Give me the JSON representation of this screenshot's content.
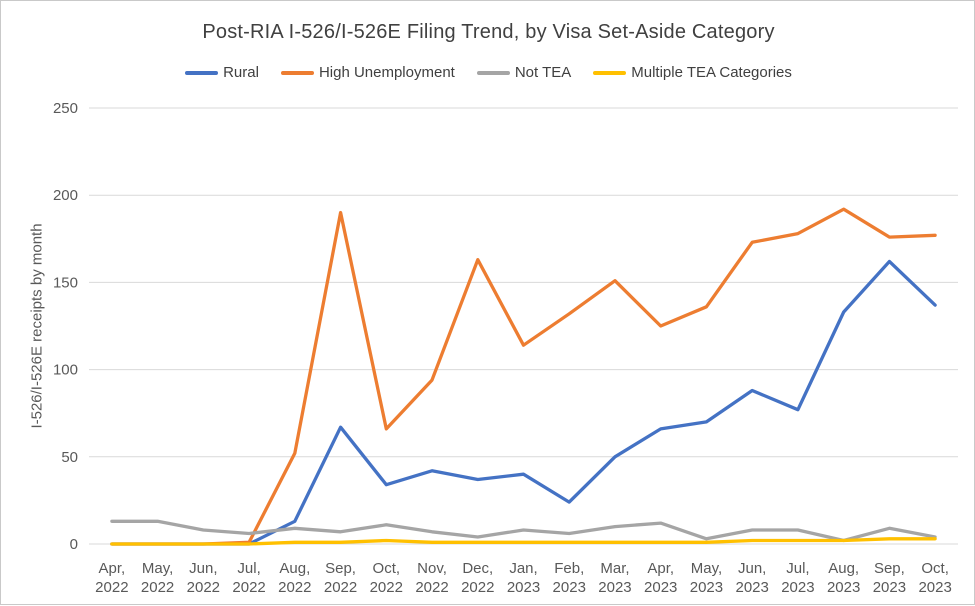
{
  "colors": {
    "background": "#FFFFFF",
    "border": "#C9C9C9",
    "gridline": "#D9D9D9",
    "axis_text": "#595959",
    "title_text": "#404040"
  },
  "chart_data": {
    "type": "line",
    "title": "Post-RIA I-526/I-526E Filing Trend, by Visa Set-Aside Category",
    "xlabel": "",
    "ylabel": "I-526/I-526E receipts by month",
    "ylim": [
      0,
      250
    ],
    "ytick_interval": 50,
    "yticks": [
      0,
      50,
      100,
      150,
      200,
      250
    ],
    "grid": true,
    "legend_position": "top",
    "categories": [
      "Apr, 2022",
      "May, 2022",
      "Jun, 2022",
      "Jul, 2022",
      "Aug, 2022",
      "Sep, 2022",
      "Oct, 2022",
      "Nov, 2022",
      "Dec, 2022",
      "Jan, 2023",
      "Feb, 2023",
      "Mar, 2023",
      "Apr, 2023",
      "May, 2023",
      "Jun, 2023",
      "Jul, 2023",
      "Aug, 2023",
      "Sep, 2023",
      "Oct, 2023"
    ],
    "series": [
      {
        "name": "Rural",
        "color": "#4472C4",
        "values": [
          0,
          0,
          0,
          0,
          13,
          67,
          34,
          42,
          37,
          40,
          24,
          50,
          66,
          70,
          88,
          77,
          133,
          162,
          137
        ]
      },
      {
        "name": "High Unemployment",
        "color": "#ED7D31",
        "values": [
          0,
          0,
          0,
          1,
          52,
          190,
          66,
          94,
          163,
          114,
          132,
          151,
          125,
          136,
          173,
          178,
          192,
          176,
          177
        ]
      },
      {
        "name": "Not TEA",
        "color": "#A5A5A5",
        "values": [
          13,
          13,
          8,
          6,
          9,
          7,
          11,
          7,
          4,
          8,
          6,
          10,
          12,
          3,
          8,
          8,
          2,
          9,
          4
        ]
      },
      {
        "name": "Multiple TEA Categories",
        "color": "#FFC000",
        "values": [
          0,
          0,
          0,
          0,
          1,
          1,
          2,
          1,
          1,
          1,
          1,
          1,
          1,
          1,
          2,
          2,
          2,
          3,
          3
        ]
      }
    ]
  }
}
